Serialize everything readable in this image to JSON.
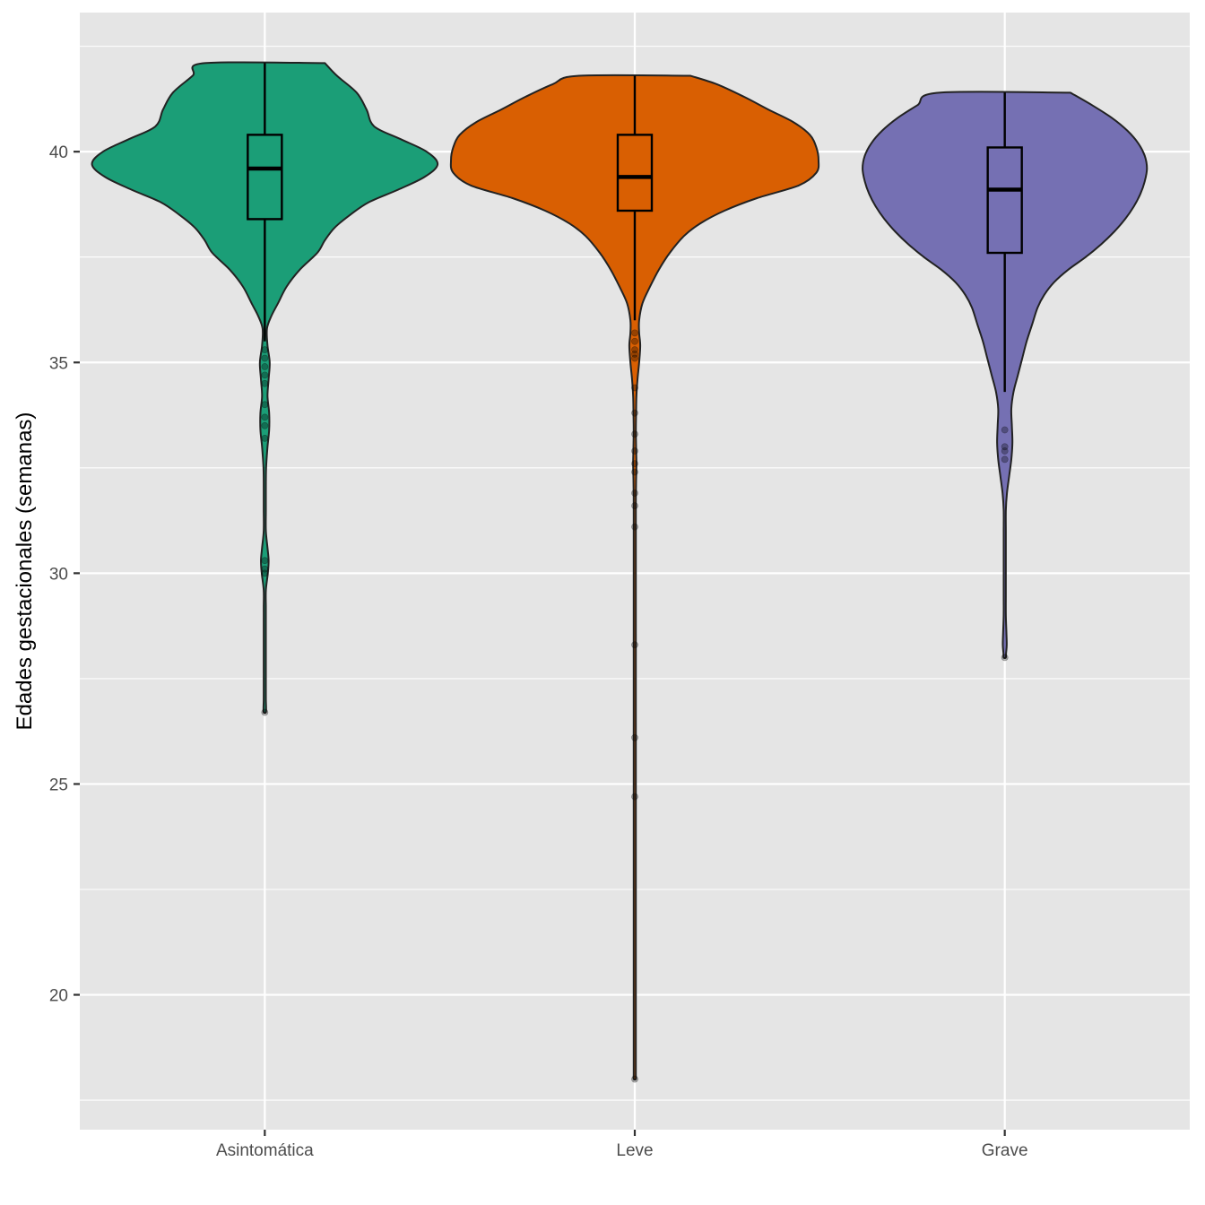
{
  "chart_data": {
    "type": "violin",
    "title": "",
    "xlabel": "",
    "ylabel": "Edades gestacionales (semanas)",
    "ylim": [
      16.8,
      43.3
    ],
    "y_ticks": [
      20,
      25,
      30,
      35,
      40
    ],
    "y_tick_labels": [
      "20",
      "25",
      "30",
      "35",
      "40"
    ],
    "categories": [
      "Asintomática",
      "Leve",
      "Grave"
    ],
    "grid": true,
    "legend": "none",
    "background": "#E5E5E5",
    "gridline_color": "#FFFFFF",
    "series": [
      {
        "category": "Asintomática",
        "fill": "#1B9E77",
        "box": {
          "min": 35.5,
          "q1": 38.4,
          "median": 39.6,
          "q3": 40.4,
          "max": 42.1
        },
        "outliers": [
          35.3,
          35.1,
          34.9,
          34.7,
          34.5,
          34.0,
          33.7,
          33.5,
          33.2,
          30.3,
          30.1,
          30.0,
          26.7
        ],
        "density": [
          [
            42.1,
            0.55
          ],
          [
            41.8,
            0.66
          ],
          [
            41.4,
            0.84
          ],
          [
            41.0,
            0.93
          ],
          [
            40.6,
            1.0
          ],
          [
            40.3,
            1.24
          ],
          [
            40.0,
            1.48
          ],
          [
            39.7,
            1.58
          ],
          [
            39.4,
            1.46
          ],
          [
            39.1,
            1.22
          ],
          [
            38.8,
            0.95
          ],
          [
            38.5,
            0.78
          ],
          [
            38.2,
            0.64
          ],
          [
            37.9,
            0.55
          ],
          [
            37.6,
            0.48
          ],
          [
            37.2,
            0.32
          ],
          [
            36.8,
            0.2
          ],
          [
            36.4,
            0.12
          ],
          [
            36.1,
            0.06
          ],
          [
            35.8,
            0.02
          ],
          [
            35.4,
            0.025
          ],
          [
            35.0,
            0.045
          ],
          [
            34.6,
            0.035
          ],
          [
            34.2,
            0.025
          ],
          [
            33.8,
            0.04
          ],
          [
            33.4,
            0.04
          ],
          [
            33.0,
            0.025
          ],
          [
            32.5,
            0.012
          ],
          [
            32.0,
            0.006
          ],
          [
            31.5,
            0.004
          ],
          [
            31.0,
            0.01
          ],
          [
            30.6,
            0.025
          ],
          [
            30.3,
            0.035
          ],
          [
            30.0,
            0.028
          ],
          [
            29.6,
            0.01
          ],
          [
            29.2,
            0.008
          ],
          [
            28.8,
            0.005
          ],
          [
            28.3,
            0.004
          ],
          [
            27.8,
            0.004
          ],
          [
            27.3,
            0.005
          ],
          [
            27.0,
            0.01
          ],
          [
            26.8,
            0.012
          ],
          [
            26.7,
            0.008
          ]
        ]
      },
      {
        "category": "Leve",
        "fill": "#D95F02",
        "box": {
          "min": 36.0,
          "q1": 38.6,
          "median": 39.4,
          "q3": 40.4,
          "max": 41.8
        },
        "outliers": [
          35.7,
          35.5,
          35.3,
          35.2,
          35.1,
          34.4,
          33.8,
          33.3,
          32.9,
          32.6,
          32.4,
          31.9,
          31.6,
          31.1,
          28.3,
          26.1,
          24.7,
          18.0
        ],
        "density": [
          [
            41.8,
            0.51
          ],
          [
            41.6,
            0.75
          ],
          [
            41.3,
            1.0
          ],
          [
            41.0,
            1.22
          ],
          [
            40.7,
            1.45
          ],
          [
            40.4,
            1.6
          ],
          [
            40.1,
            1.66
          ],
          [
            39.8,
            1.68
          ],
          [
            39.5,
            1.66
          ],
          [
            39.2,
            1.5
          ],
          [
            38.9,
            1.12
          ],
          [
            38.6,
            0.82
          ],
          [
            38.3,
            0.6
          ],
          [
            38.0,
            0.45
          ],
          [
            37.6,
            0.32
          ],
          [
            37.2,
            0.22
          ],
          [
            36.8,
            0.14
          ],
          [
            36.4,
            0.07
          ],
          [
            36.0,
            0.04
          ],
          [
            35.7,
            0.04
          ],
          [
            35.4,
            0.05
          ],
          [
            35.0,
            0.04
          ],
          [
            34.6,
            0.025
          ],
          [
            34.2,
            0.015
          ],
          [
            33.8,
            0.012
          ],
          [
            33.4,
            0.01
          ],
          [
            33.0,
            0.012
          ],
          [
            32.6,
            0.015
          ],
          [
            32.2,
            0.012
          ],
          [
            31.8,
            0.01
          ],
          [
            31.4,
            0.008
          ],
          [
            31.0,
            0.006
          ],
          [
            30.5,
            0.004
          ],
          [
            30.0,
            0.003
          ],
          [
            29.5,
            0.003
          ],
          [
            29.0,
            0.004
          ],
          [
            28.6,
            0.008
          ],
          [
            28.3,
            0.01
          ],
          [
            28.0,
            0.006
          ],
          [
            27.5,
            0.003
          ],
          [
            27.0,
            0.003
          ],
          [
            26.5,
            0.005
          ],
          [
            26.2,
            0.01
          ],
          [
            25.9,
            0.006
          ],
          [
            25.4,
            0.003
          ],
          [
            25.0,
            0.004
          ],
          [
            24.7,
            0.01
          ],
          [
            24.4,
            0.005
          ],
          [
            24.0,
            0.003
          ],
          [
            23.0,
            0.002
          ],
          [
            22.0,
            0.002
          ],
          [
            21.0,
            0.002
          ],
          [
            20.0,
            0.002
          ],
          [
            19.0,
            0.002
          ],
          [
            18.6,
            0.004
          ],
          [
            18.3,
            0.006
          ],
          [
            18.1,
            0.008
          ],
          [
            18.0,
            0.005
          ]
        ]
      },
      {
        "category": "Grave",
        "fill": "#7570B3",
        "box": {
          "min": 34.3,
          "q1": 37.6,
          "median": 39.1,
          "q3": 40.1,
          "max": 41.4
        },
        "outliers": [
          33.4,
          33.0,
          32.9,
          32.7,
          28.0
        ],
        "density": [
          [
            41.4,
            0.6
          ],
          [
            41.1,
            0.8
          ],
          [
            40.8,
            0.98
          ],
          [
            40.5,
            1.12
          ],
          [
            40.2,
            1.22
          ],
          [
            39.9,
            1.28
          ],
          [
            39.6,
            1.3
          ],
          [
            39.3,
            1.28
          ],
          [
            39.0,
            1.24
          ],
          [
            38.7,
            1.18
          ],
          [
            38.4,
            1.1
          ],
          [
            38.1,
            1.0
          ],
          [
            37.8,
            0.88
          ],
          [
            37.5,
            0.74
          ],
          [
            37.2,
            0.58
          ],
          [
            36.9,
            0.45
          ],
          [
            36.6,
            0.36
          ],
          [
            36.3,
            0.3
          ],
          [
            35.9,
            0.25
          ],
          [
            35.5,
            0.2
          ],
          [
            35.1,
            0.16
          ],
          [
            34.7,
            0.12
          ],
          [
            34.3,
            0.08
          ],
          [
            33.9,
            0.06
          ],
          [
            33.5,
            0.065
          ],
          [
            33.1,
            0.07
          ],
          [
            32.7,
            0.06
          ],
          [
            32.3,
            0.04
          ],
          [
            31.9,
            0.02
          ],
          [
            31.5,
            0.01
          ],
          [
            31.0,
            0.006
          ],
          [
            30.5,
            0.004
          ],
          [
            30.0,
            0.004
          ],
          [
            29.5,
            0.006
          ],
          [
            29.0,
            0.01
          ],
          [
            28.6,
            0.015
          ],
          [
            28.3,
            0.018
          ],
          [
            28.1,
            0.012
          ],
          [
            28.0,
            0.008
          ]
        ]
      }
    ]
  }
}
